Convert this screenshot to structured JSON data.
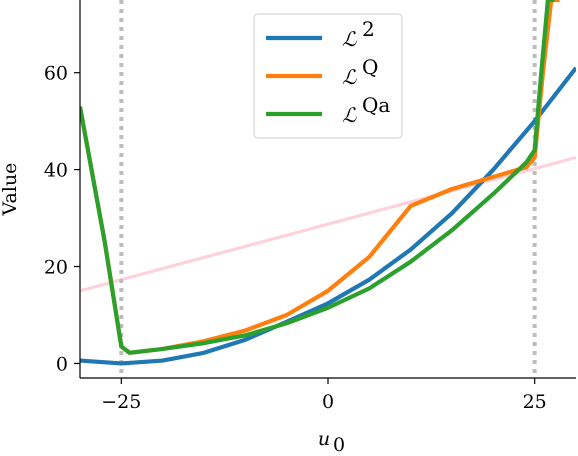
{
  "chart_data": {
    "type": "line",
    "xlabel": "u_0",
    "ylabel": "Value",
    "xlim": [
      -30,
      30
    ],
    "ylim": [
      -3,
      75
    ],
    "xticks": [
      -25,
      0,
      25
    ],
    "xtick_labels": [
      "−25",
      "0",
      "25"
    ],
    "yticks": [
      0,
      20,
      40,
      60
    ],
    "ytick_labels": [
      "0",
      "20",
      "40",
      "60"
    ],
    "vlines": [
      -25,
      25
    ],
    "vline_color": "#bdbdbd",
    "legend_position": "upper center",
    "guide_line": {
      "color": "#ffd1da",
      "x": [
        -30,
        30
      ],
      "y": [
        15,
        42.5
      ]
    },
    "series": [
      {
        "name": "L^2",
        "legend_base": "ℒ",
        "legend_sup": "2",
        "color": "#1f77b4",
        "x": [
          -30,
          -25,
          -20,
          -15,
          -10,
          -5,
          0,
          5,
          10,
          15,
          20,
          25,
          30
        ],
        "y": [
          0.6,
          0,
          0.6,
          2.2,
          4.9,
          8.6,
          12.4,
          17.3,
          23.5,
          31,
          40,
          50,
          61
        ]
      },
      {
        "name": "L^Q",
        "legend_base": "ℒ",
        "legend_sup": "Q",
        "color": "#ff7f0e",
        "x": [
          -30,
          -27,
          -25,
          -24,
          -20,
          -15,
          -10,
          -5,
          0,
          5,
          10,
          15,
          20,
          24,
          25,
          26,
          27,
          28
        ],
        "y": [
          53,
          25,
          3.5,
          2.2,
          3,
          4.6,
          6.8,
          10,
          15,
          22,
          32.5,
          36,
          38.5,
          40.5,
          42.5,
          60,
          75,
          75
        ]
      },
      {
        "name": "L^Qa",
        "legend_base": "ℒ",
        "legend_sup": "Qa",
        "color": "#2ca02c",
        "x": [
          -30,
          -27,
          -25,
          -24,
          -20,
          -15,
          -10,
          -5,
          0,
          5,
          10,
          15,
          20,
          24,
          25,
          25.8,
          26.6,
          27.4
        ],
        "y": [
          53,
          25,
          3.5,
          2.2,
          3,
          4.2,
          5.8,
          8.3,
          11.5,
          15.5,
          21,
          27.5,
          35,
          41.5,
          44,
          60,
          75,
          75
        ]
      }
    ]
  }
}
